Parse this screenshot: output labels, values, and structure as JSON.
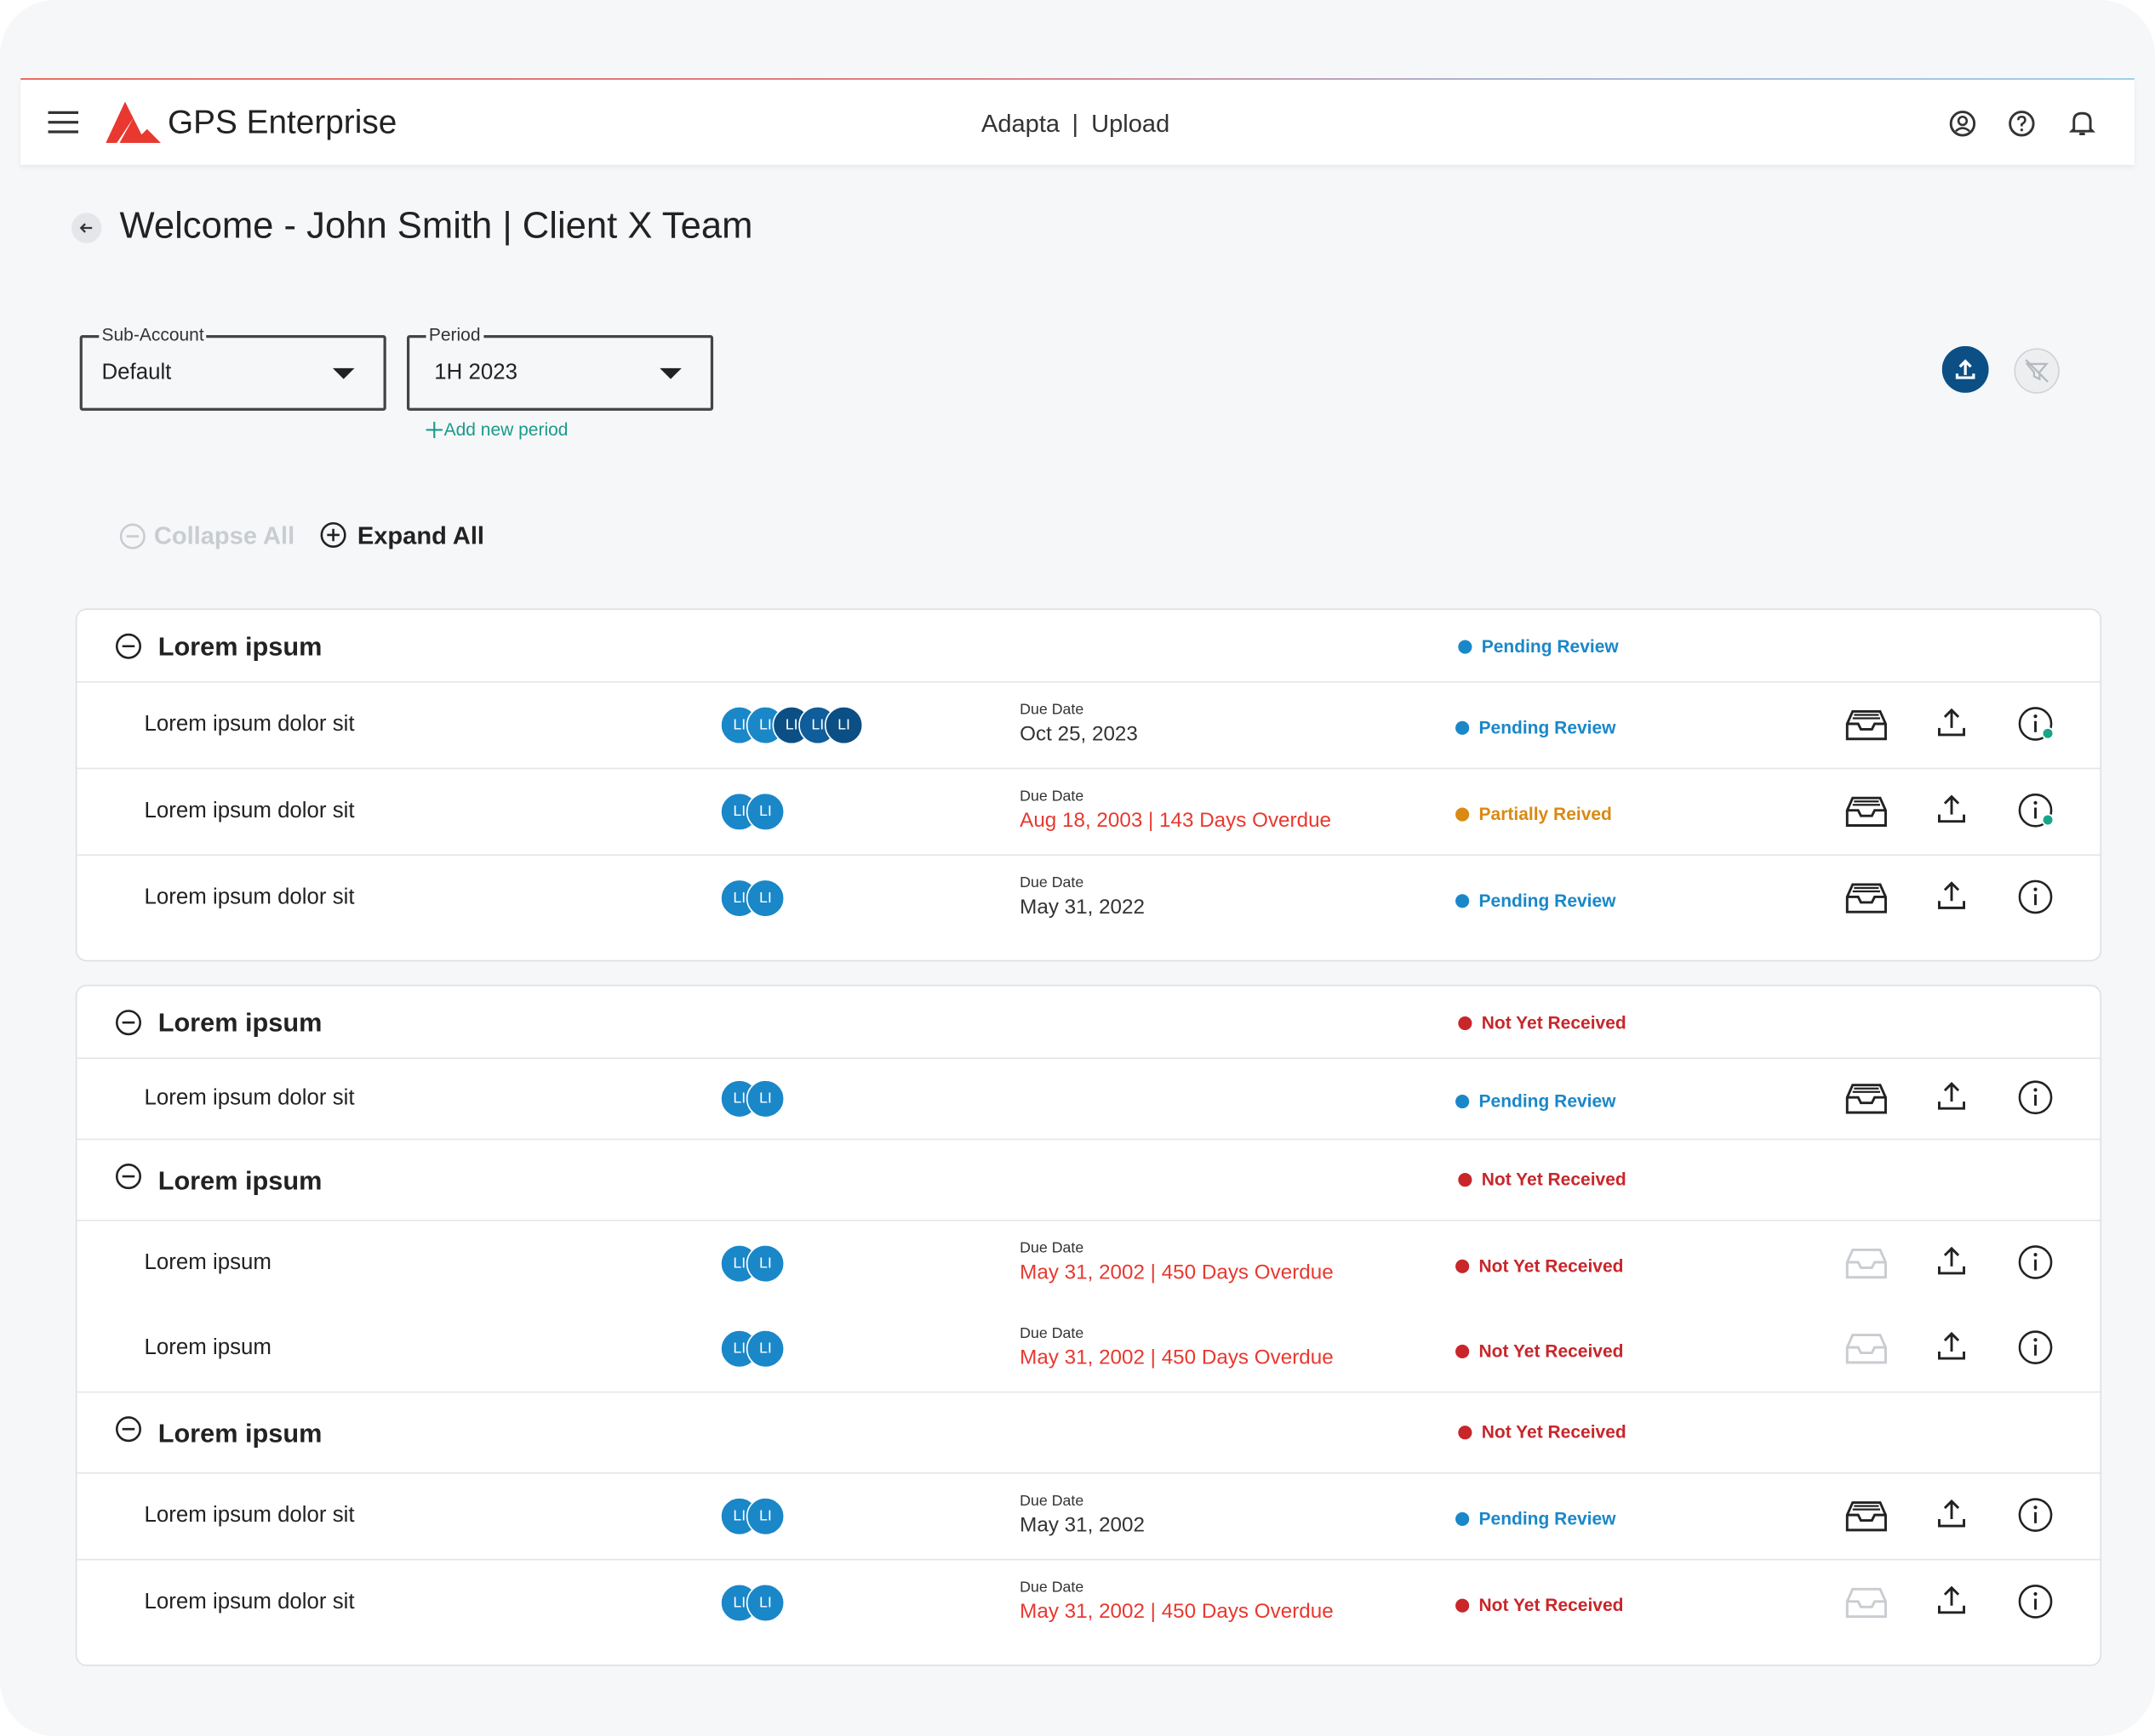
{
  "header": {
    "brand": "GPS Enterprise",
    "nav_left": "Adapta",
    "nav_sep": "|",
    "nav_right": "Upload"
  },
  "page": {
    "title": "Welcome - John Smith | Client X Team"
  },
  "filters": {
    "sub_account": {
      "label": "Sub-Account",
      "value": "Default"
    },
    "period": {
      "label": "Period",
      "value": "1H 2023"
    },
    "add_period": "Add new period"
  },
  "controls": {
    "collapse": "Collapse All",
    "expand": "Expand All"
  },
  "cards": [
    {
      "groups": [
        {
          "title": "Lorem ipsum",
          "status": "Pending Review",
          "status_color": "#1a87c9",
          "rows": [
            {
              "name": "Lorem ipsum dolor sit",
              "avatars": [
                "LI",
                "LI",
                "LI",
                "LI",
                "LI"
              ],
              "due_label": "Due Date",
              "due_date": "Oct 25, 2023",
              "overdue": false,
              "status": "Pending  Review",
              "status_color": "#1a87c9",
              "inbox_enabled": true,
              "info_dot": true
            },
            {
              "name": "Lorem ipsum dolor sit",
              "avatars": [
                "LI",
                "LI"
              ],
              "due_label": "Due Date",
              "due_date": "Aug 18, 2003 | 143 Days Overdue",
              "overdue": true,
              "status": "Partially Reived",
              "status_color": "#d98a12",
              "inbox_enabled": true,
              "info_dot": true
            },
            {
              "name": "Lorem ipsum dolor sit",
              "avatars": [
                "LI",
                "LI"
              ],
              "due_label": "Due Date",
              "due_date": "May 31, 2022",
              "overdue": false,
              "status": "Pending Review",
              "status_color": "#1a87c9",
              "inbox_enabled": true,
              "info_dot": false
            }
          ]
        }
      ]
    },
    {
      "groups": [
        {
          "title": "Lorem ipsum",
          "status": "Not Yet Received",
          "status_color": "#c8262a",
          "rows": [
            {
              "name": "Lorem ipsum dolor sit",
              "avatars": [
                "LI",
                "LI"
              ],
              "status": "Pending Review",
              "status_color": "#1a87c9",
              "inbox_enabled": true,
              "info_dot": false
            }
          ]
        },
        {
          "title": "Lorem ipsum",
          "status": "Not Yet Received",
          "status_color": "#c8262a",
          "rows": [
            {
              "name": "Lorem ipsum",
              "avatars": [
                "LI",
                "LI"
              ],
              "due_label": "Due Date",
              "due_date": "May 31, 2002 | 450 Days Overdue",
              "overdue": true,
              "status": "Not Yet Received",
              "status_color": "#c8262a",
              "inbox_enabled": false,
              "info_dot": false
            },
            {
              "name": "Lorem ipsum",
              "avatars": [
                "LI",
                "LI"
              ],
              "due_label": "Due Date",
              "due_date": "May 31, 2002 | 450 Days Overdue",
              "overdue": true,
              "status": "Not Yet Received",
              "status_color": "#c8262a",
              "inbox_enabled": false,
              "info_dot": false
            }
          ]
        },
        {
          "title": "Lorem ipsum",
          "status": "Not Yet Received",
          "status_color": "#c8262a",
          "rows": [
            {
              "name": "Lorem ipsum dolor sit",
              "avatars": [
                "LI",
                "LI"
              ],
              "due_label": "Due Date",
              "due_date": "May 31, 2002",
              "overdue": false,
              "status": "Pending Review",
              "status_color": "#1a87c9",
              "inbox_enabled": true,
              "info_dot": false
            },
            {
              "name": "Lorem ipsum dolor sit",
              "avatars": [
                "LI",
                "LI"
              ],
              "due_label": "Due Date",
              "due_date": "May 31, 2002 | 450 Days Overdue",
              "overdue": true,
              "status": "Not Yet Received",
              "status_color": "#c8262a",
              "inbox_enabled": false,
              "info_dot": false
            }
          ]
        }
      ]
    }
  ]
}
